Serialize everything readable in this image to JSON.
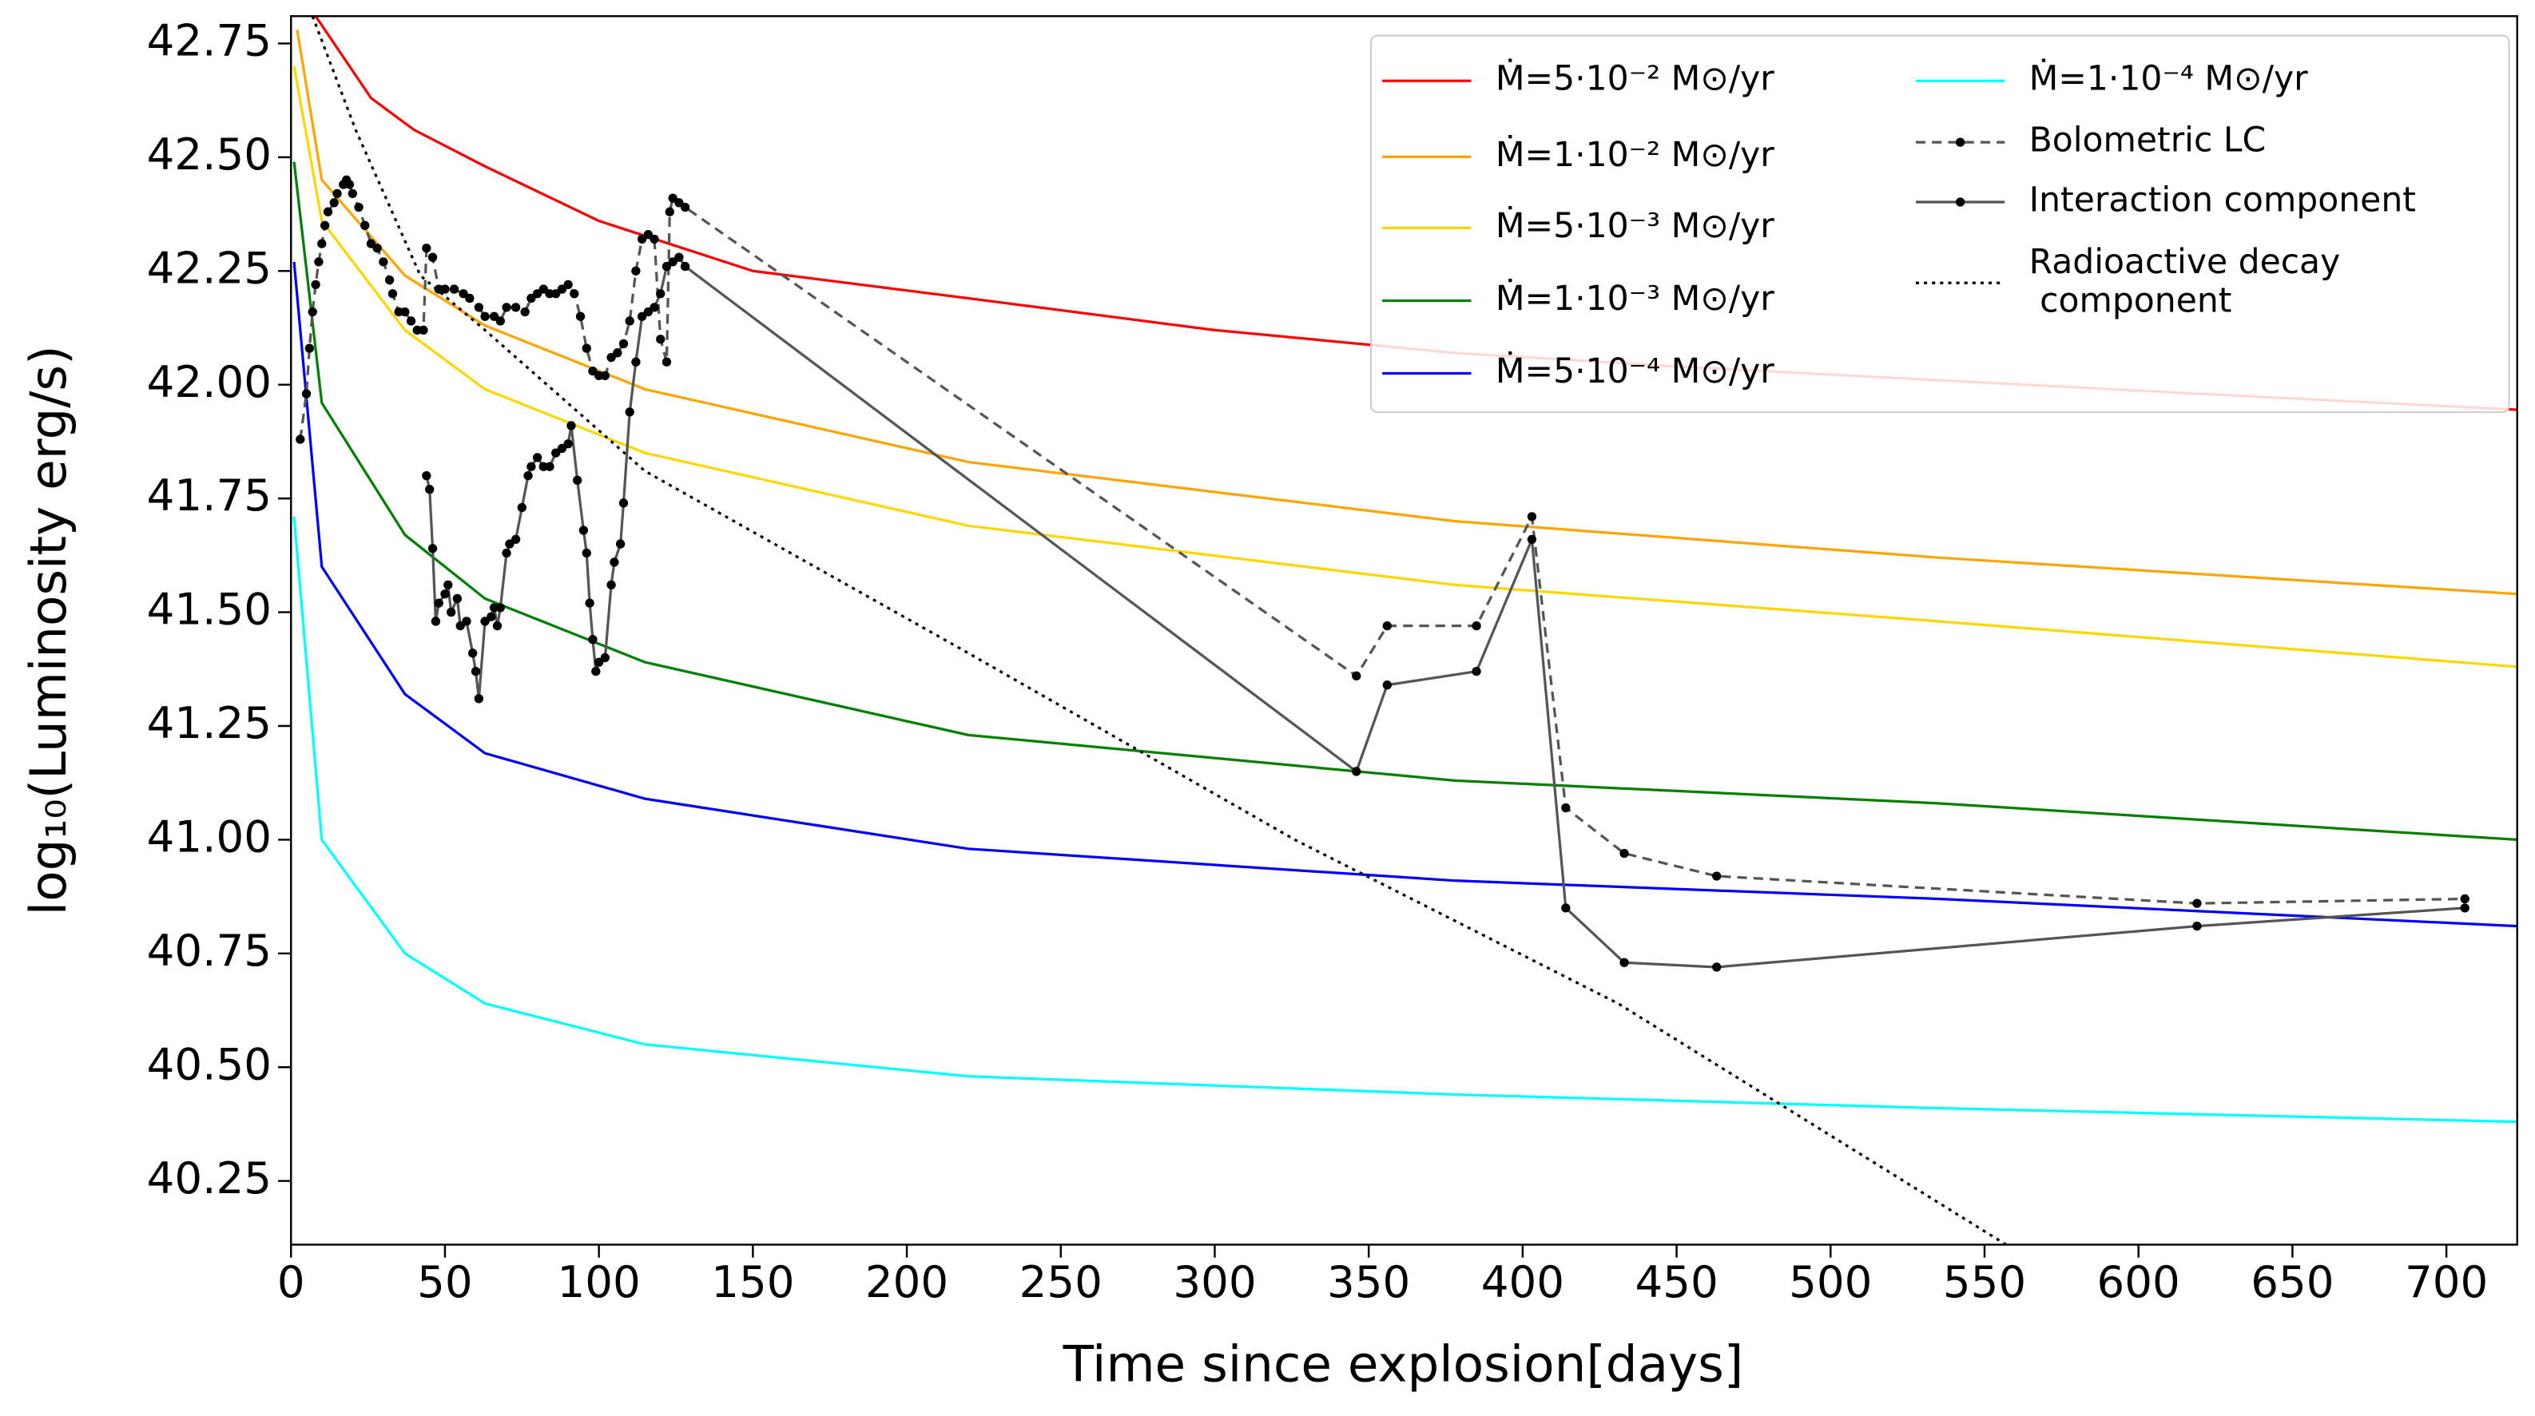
{
  "chart_data": {
    "type": "line",
    "xlabel": "Time since explosion[days]",
    "ylabel": "log₁₀(Luminosity erg/s)",
    "xlim": [
      0,
      723
    ],
    "ylim": [
      40.11,
      42.81
    ],
    "xticks": [
      0,
      50,
      100,
      150,
      200,
      250,
      300,
      350,
      400,
      450,
      500,
      550,
      600,
      650,
      700
    ],
    "yticks": [
      40.25,
      {
        "value": 40.5,
        "label": "40.50"
      },
      40.75,
      {
        "value": 41,
        "label": "41.00"
      },
      41.25,
      {
        "value": 41.5,
        "label": "41.50"
      },
      41.75,
      {
        "value": 42,
        "label": "42.00"
      },
      42.25,
      {
        "value": 42.5,
        "label": "42.50"
      },
      42.75
    ],
    "grid": false,
    "legend": "upper right",
    "series": [
      {
        "name": "Ṁ=5·10⁻² M⊙/yr",
        "color": "#ff0000",
        "style": "solid",
        "marker": false,
        "x": [
          8,
          15,
          26,
          40,
          63,
          100,
          150,
          220,
          300,
          378,
          450,
          535,
          620,
          723
        ],
        "values": [
          42.81,
          42.74,
          42.63,
          42.56,
          42.48,
          42.36,
          42.25,
          42.19,
          42.12,
          42.07,
          42.04,
          42.01,
          41.98,
          41.945
        ]
      },
      {
        "name": "Ṁ=1·10⁻² M⊙/yr",
        "color": "#ffa500",
        "style": "solid",
        "marker": false,
        "x": [
          2,
          10,
          37,
          63,
          115,
          220,
          378,
          535,
          723
        ],
        "values": [
          42.78,
          42.45,
          42.24,
          42.13,
          41.99,
          41.83,
          41.7,
          41.62,
          41.54
        ]
      },
      {
        "name": "Ṁ=5·10⁻³ M⊙/yr",
        "color": "#ffd700",
        "style": "solid",
        "marker": false,
        "x": [
          1,
          10,
          37,
          63,
          115,
          220,
          378,
          535,
          723
        ],
        "values": [
          42.7,
          42.36,
          42.12,
          41.99,
          41.85,
          41.69,
          41.56,
          41.48,
          41.38
        ]
      },
      {
        "name": "Ṁ=1·10⁻³ M⊙/yr",
        "color": "#008000",
        "style": "solid",
        "marker": false,
        "x": [
          1,
          10,
          37,
          63,
          115,
          220,
          378,
          535,
          723
        ],
        "values": [
          42.49,
          41.96,
          41.67,
          41.53,
          41.39,
          41.23,
          41.13,
          41.08,
          41.0
        ]
      },
      {
        "name": "Ṁ=5·10⁻⁴ M⊙/yr",
        "color": "#0000ff",
        "style": "solid",
        "marker": false,
        "x": [
          1,
          10,
          37,
          63,
          115,
          220,
          378,
          535,
          723
        ],
        "values": [
          42.27,
          41.6,
          41.32,
          41.19,
          41.09,
          40.98,
          40.91,
          40.87,
          40.81
        ]
      },
      {
        "name": "Ṁ=1·10⁻⁴ M⊙/yr",
        "color": "#00ffff",
        "style": "solid",
        "marker": false,
        "x": [
          1,
          10,
          37,
          63,
          115,
          220,
          378,
          535,
          723
        ],
        "values": [
          41.71,
          41.0,
          40.75,
          40.64,
          40.55,
          40.48,
          40.44,
          40.41,
          40.38
        ]
      },
      {
        "name": "Bolometric LC",
        "color": "#555555",
        "style": "dashed",
        "marker": true,
        "x": [
          3,
          5,
          6,
          7,
          8,
          9,
          10,
          11,
          12,
          14,
          15,
          17,
          18,
          19,
          20,
          22,
          24,
          26,
          28,
          30,
          32,
          33,
          35,
          37,
          39,
          41,
          43,
          44,
          46,
          48,
          50,
          53,
          56,
          58,
          61,
          63,
          66,
          68,
          70,
          73,
          76,
          78,
          80,
          82,
          84,
          86,
          88,
          90,
          92,
          94,
          96,
          98,
          100,
          102,
          104,
          106,
          108,
          110,
          112,
          114,
          116,
          118,
          120,
          122,
          123,
          124,
          126,
          128,
          346,
          356,
          385,
          403,
          414,
          433,
          463,
          619,
          706
        ],
        "values": [
          41.88,
          41.98,
          42.08,
          42.16,
          42.22,
          42.27,
          42.31,
          42.35,
          42.38,
          42.4,
          42.42,
          42.44,
          42.45,
          42.44,
          42.42,
          42.39,
          42.35,
          42.31,
          42.3,
          42.27,
          42.23,
          42.2,
          42.16,
          42.16,
          42.14,
          42.12,
          42.12,
          42.3,
          42.28,
          42.21,
          42.21,
          42.21,
          42.2,
          42.19,
          42.17,
          42.15,
          42.15,
          42.14,
          42.17,
          42.17,
          42.16,
          42.19,
          42.2,
          42.21,
          42.2,
          42.2,
          42.21,
          42.22,
          42.2,
          42.15,
          42.08,
          42.03,
          42.02,
          42.02,
          42.06,
          42.07,
          42.09,
          42.14,
          42.25,
          42.32,
          42.33,
          42.32,
          42.1,
          42.05,
          42.38,
          42.41,
          42.4,
          42.39,
          41.36,
          41.47,
          41.47,
          41.71,
          41.07,
          40.97,
          40.92,
          40.86,
          40.87
        ]
      },
      {
        "name": "Interaction component",
        "color": "#555555",
        "style": "solid",
        "marker": true,
        "x": [
          44,
          45,
          46,
          47,
          48,
          50,
          51,
          52,
          54,
          55,
          57,
          59,
          60,
          61,
          63,
          65,
          66,
          67,
          68,
          70,
          71,
          73,
          75,
          77,
          78,
          80,
          82,
          84,
          86,
          88,
          90,
          91,
          93,
          95,
          96,
          97,
          98,
          99,
          100,
          102,
          104,
          105,
          107,
          108,
          110,
          112,
          114,
          116,
          118,
          120,
          122,
          124,
          126,
          128,
          346,
          356,
          385,
          403,
          414,
          433,
          463,
          619,
          706
        ],
        "values": [
          41.8,
          41.77,
          41.64,
          41.48,
          41.52,
          41.54,
          41.56,
          41.5,
          41.53,
          41.47,
          41.48,
          41.41,
          41.37,
          41.31,
          41.48,
          41.49,
          41.51,
          41.47,
          41.51,
          41.63,
          41.65,
          41.66,
          41.73,
          41.8,
          41.82,
          41.84,
          41.82,
          41.82,
          41.85,
          41.86,
          41.87,
          41.91,
          41.79,
          41.68,
          41.63,
          41.52,
          41.44,
          41.37,
          41.39,
          41.4,
          41.56,
          41.61,
          41.65,
          41.74,
          41.94,
          42.05,
          42.15,
          42.16,
          42.17,
          42.2,
          42.26,
          42.27,
          42.28,
          42.26,
          41.15,
          41.34,
          41.37,
          41.66,
          40.85,
          40.73,
          40.72,
          40.81,
          40.85
        ]
      },
      {
        "name": "Radioactive decay\n component",
        "color": "#000000",
        "style": "dotted",
        "marker": false,
        "x": [
          7,
          21,
          42,
          63,
          115,
          220,
          326,
          431,
          557
        ],
        "values": [
          42.81,
          42.56,
          42.24,
          42.12,
          41.81,
          41.41,
          41.0,
          40.64,
          40.11
        ]
      }
    ]
  }
}
